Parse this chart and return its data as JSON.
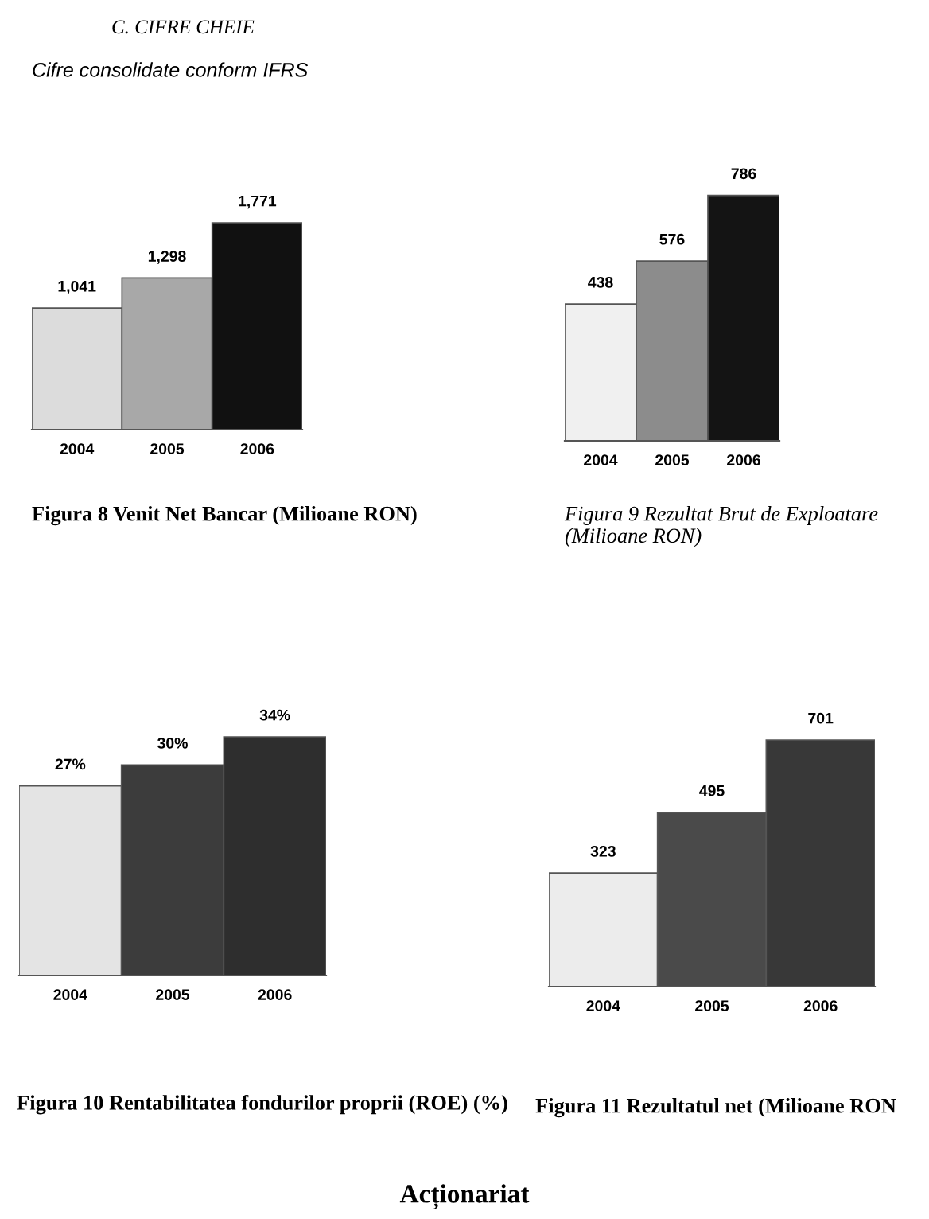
{
  "chart_data": [
    {
      "type": "bar",
      "title": "Figura 8 Venit Net Bancar (Milioane RON)",
      "annotations": [
        "C. CIFRE CHEIE",
        "Cifre consolidate conform IFRS"
      ],
      "categories": [
        "2004",
        "2005",
        "2006"
      ],
      "values": [
        1041,
        1298,
        1771
      ],
      "value_labels": [
        "1,041",
        "1,298",
        "1,771"
      ],
      "colors": [
        "#dcdcdc",
        "#a8a8a8",
        "#111111"
      ],
      "tick_labels": "x",
      "grid": false,
      "legend": false
    },
    {
      "type": "bar",
      "title": "Figura 9 Rezultat Brut de Exploatare (Milioane RON)",
      "categories": [
        "2004",
        "2005",
        "2006"
      ],
      "values": [
        438,
        576,
        786
      ],
      "value_labels": [
        "438",
        "576",
        "786"
      ],
      "colors": [
        "#f0f0f0",
        "#8c8c8c",
        "#141414"
      ],
      "tick_labels": "x",
      "grid": false,
      "legend": false
    },
    {
      "type": "bar",
      "title": "Figura 10 Rentabilitatea fondurilor proprii (ROE) (%)",
      "categories": [
        "2004",
        "2005",
        "2006"
      ],
      "values": [
        27,
        30,
        34
      ],
      "value_labels": [
        "27%",
        "30%",
        "34%"
      ],
      "colors": [
        "#e4e4e4",
        "#3c3c3c",
        "#2e2e2e"
      ],
      "tick_labels": "x",
      "grid": false,
      "legend": false
    },
    {
      "type": "bar",
      "title": "Figura 11 Rezultatul net (Milioane RON",
      "annotations": [
        "Acționariat"
      ],
      "categories": [
        "2004",
        "2005",
        "2006"
      ],
      "values": [
        323,
        495,
        701
      ],
      "value_labels": [
        "323",
        "495",
        "701"
      ],
      "colors": [
        "#ececec",
        "#4a4a4a",
        "#383838"
      ],
      "tick_labels": "x",
      "grid": false,
      "legend": false
    }
  ]
}
